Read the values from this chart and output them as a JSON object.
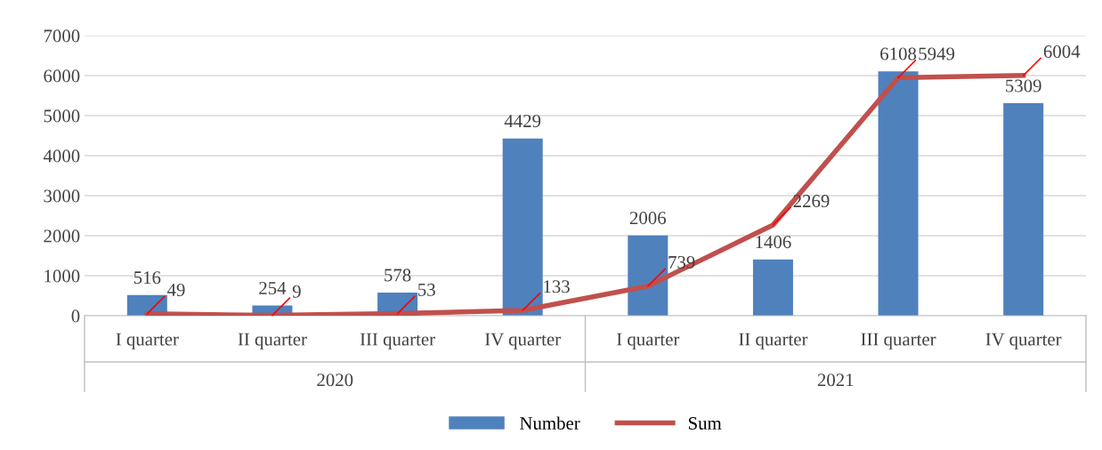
{
  "chart_data": {
    "type": "bar",
    "categories": [
      "I quarter",
      "II quarter",
      "III quarter",
      "IV quarter",
      "I quarter",
      "II quarter",
      "III quarter",
      "IV quarter"
    ],
    "annotations": [
      "2020",
      "2021"
    ],
    "series": [
      {
        "name": "Number",
        "type": "bar",
        "color": "#4f81bd",
        "values": [
          516,
          254,
          578,
          4429,
          2006,
          1406,
          6108,
          5309
        ]
      },
      {
        "name": "Sum",
        "type": "line",
        "color": "#c0504d",
        "values": [
          49,
          9,
          53,
          133,
          739,
          2269,
          5949,
          6004
        ]
      }
    ],
    "ylim": [
      0,
      7000
    ],
    "yticks": [
      0,
      1000,
      2000,
      3000,
      4000,
      5000,
      6000,
      7000
    ],
    "grid": "y",
    "legend": "bottom",
    "data_labels": true,
    "marker": "none",
    "line_style": "solid"
  }
}
